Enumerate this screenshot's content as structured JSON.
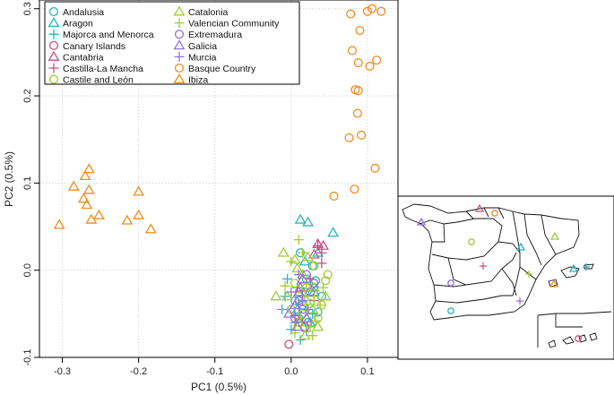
{
  "chart_data": {
    "type": "scatter",
    "title": "",
    "xlabel": "PC1 (0.5%)",
    "ylabel": "PC2 (0.5%)",
    "xlim": [
      -0.33,
      0.14
    ],
    "ylim": [
      -0.1,
      0.31
    ],
    "xticks": [
      -0.3,
      -0.2,
      -0.1,
      0.0,
      0.1
    ],
    "xtick_labels": [
      "-0.3",
      "-0.2",
      "-0.1",
      "0.0",
      "0.1"
    ],
    "yticks": [
      -0.1,
      0.0,
      0.1,
      0.2,
      0.3
    ],
    "ytick_labels": [
      "-0.1",
      "0.0",
      "0.1",
      "0.2",
      "0.3"
    ],
    "grid": true,
    "legend_position": "top-left",
    "series": [
      {
        "name": "Andalusia",
        "color": "#29b3c0",
        "marker": "circle",
        "points": [
          [
            0.012,
            0.02
          ],
          [
            0.03,
            -0.02
          ],
          [
            0.035,
            -0.048
          ],
          [
            0.005,
            -0.035
          ],
          [
            0.02,
            -0.01
          ],
          [
            0.028,
            0.005
          ],
          [
            0.01,
            -0.055
          ],
          [
            0.04,
            -0.03
          ],
          [
            0.022,
            -0.06
          ],
          [
            0.015,
            -0.04
          ],
          [
            0.032,
            -0.012
          ],
          [
            0.018,
            -0.025
          ]
        ]
      },
      {
        "name": "Aragon",
        "color": "#29b3c0",
        "marker": "triangle",
        "points": [
          [
            0.012,
            0.058
          ],
          [
            0.022,
            0.055
          ],
          [
            0.055,
            0.043
          ],
          [
            0.018,
            0.01
          ],
          [
            0.03,
            -0.025
          ],
          [
            0.035,
            0.02
          ],
          [
            0.008,
            -0.045
          ],
          [
            0.025,
            -0.06
          ]
        ]
      },
      {
        "name": "Majorca and Menorca",
        "color": "#29b3c0",
        "marker": "plus",
        "points": [
          [
            0.0,
            -0.068
          ],
          [
            -0.012,
            -0.045
          ],
          [
            0.012,
            -0.08
          ],
          [
            0.005,
            -0.06
          ],
          [
            -0.005,
            -0.01
          ],
          [
            0.015,
            -0.03
          ],
          [
            0.02,
            -0.07
          ],
          [
            0.008,
            -0.02
          ],
          [
            0.028,
            -0.05
          ],
          [
            -0.008,
            -0.03
          ]
        ]
      },
      {
        "name": "Canary Islands",
        "color": "#cc5080",
        "marker": "circle",
        "points": [
          [
            -0.003,
            -0.085
          ],
          [
            0.01,
            -0.06
          ],
          [
            0.018,
            -0.065
          ]
        ]
      },
      {
        "name": "Cantabria",
        "color": "#cc5080",
        "marker": "triangle",
        "points": [
          [
            0.035,
            0.03
          ],
          [
            0.042,
            0.028
          ],
          [
            0.03,
            0.018
          ],
          [
            0.012,
            -0.02
          ]
        ]
      },
      {
        "name": "Castilla-La Mancha",
        "color": "#cc5080",
        "marker": "plus",
        "points": [
          [
            0.035,
            0.028
          ],
          [
            0.04,
            0.02
          ],
          [
            0.04,
            0.008
          ],
          [
            0.025,
            -0.01
          ],
          [
            0.03,
            -0.035
          ]
        ]
      },
      {
        "name": "Castile and León",
        "color": "#a3cc2e",
        "marker": "circle",
        "points": [
          [
            0.005,
            -0.015
          ],
          [
            0.02,
            -0.02
          ],
          [
            0.01,
            -0.03
          ],
          [
            0.035,
            -0.055
          ],
          [
            0.045,
            -0.012
          ],
          [
            0.025,
            -0.038
          ],
          [
            0.015,
            -0.05
          ],
          [
            0.03,
            0.005
          ],
          [
            0.0,
            -0.045
          ],
          [
            0.04,
            -0.04
          ],
          [
            0.048,
            -0.005
          ]
        ]
      },
      {
        "name": "Catalonia",
        "color": "#a3cc2e",
        "marker": "triangle",
        "points": [
          [
            -0.01,
            0.02
          ],
          [
            0.005,
            0.012
          ],
          [
            0.015,
            -0.005
          ],
          [
            0.02,
            -0.035
          ],
          [
            0.028,
            -0.045
          ],
          [
            0.01,
            -0.06
          ],
          [
            -0.005,
            -0.03
          ],
          [
            0.03,
            -0.02
          ],
          [
            0.008,
            0.002
          ],
          [
            0.022,
            0.015
          ],
          [
            -0.02,
            -0.03
          ],
          [
            0.035,
            -0.065
          ],
          [
            0.018,
            -0.075
          ],
          [
            0.045,
            -0.03
          ]
        ]
      },
      {
        "name": "Valencian Community",
        "color": "#a3cc2e",
        "marker": "plus",
        "points": [
          [
            0.01,
            0.035
          ],
          [
            0.0,
            0.01
          ],
          [
            0.02,
            -0.015
          ],
          [
            0.03,
            -0.03
          ],
          [
            0.012,
            -0.055
          ],
          [
            0.025,
            -0.065
          ],
          [
            0.038,
            -0.04
          ],
          [
            -0.008,
            -0.018
          ],
          [
            0.015,
            0.02
          ],
          [
            0.042,
            -0.02
          ],
          [
            0.005,
            -0.072
          ],
          [
            0.032,
            -0.058
          ],
          [
            0.018,
            -0.03
          ],
          [
            0.028,
            -0.075
          ]
        ]
      },
      {
        "name": "Extremadura",
        "color": "#9370db",
        "marker": "circle",
        "points": [
          [
            0.01,
            -0.035
          ],
          [
            0.02,
            -0.005
          ],
          [
            0.025,
            -0.025
          ],
          [
            0.005,
            -0.055
          ],
          [
            0.015,
            -0.045
          ],
          [
            0.03,
            -0.015
          ]
        ]
      },
      {
        "name": "Galicia",
        "color": "#9370db",
        "marker": "triangle",
        "points": [
          [
            0.005,
            -0.04
          ],
          [
            0.01,
            -0.025
          ],
          [
            -0.003,
            -0.05
          ],
          [
            0.015,
            -0.01
          ],
          [
            0.02,
            -0.055
          ],
          [
            0.008,
            -0.065
          ]
        ]
      },
      {
        "name": "Murcia",
        "color": "#9370db",
        "marker": "plus",
        "points": [
          [
            0.005,
            -0.052
          ],
          [
            0.015,
            -0.035
          ],
          [
            0.0,
            -0.025
          ],
          [
            0.022,
            -0.045
          ],
          [
            0.01,
            -0.005
          ]
        ]
      },
      {
        "name": "Basque Country",
        "color": "#f08c1e",
        "marker": "circle",
        "points": [
          [
            0.078,
            0.294
          ],
          [
            0.1,
            0.297
          ],
          [
            0.106,
            0.3
          ],
          [
            0.118,
            0.297
          ],
          [
            0.09,
            0.275
          ],
          [
            0.08,
            0.252
          ],
          [
            0.088,
            0.238
          ],
          [
            0.103,
            0.234
          ],
          [
            0.112,
            0.241
          ],
          [
            0.084,
            0.207
          ],
          [
            0.088,
            0.206
          ],
          [
            0.087,
            0.18
          ],
          [
            0.092,
            0.155
          ],
          [
            0.076,
            0.152
          ],
          [
            0.11,
            0.117
          ],
          [
            0.083,
            0.093
          ],
          [
            0.056,
            0.085
          ]
        ]
      },
      {
        "name": "Ibiza",
        "color": "#f08c1e",
        "marker": "triangle",
        "points": [
          [
            -0.304,
            0.052
          ],
          [
            -0.285,
            0.096
          ],
          [
            -0.27,
            0.108
          ],
          [
            -0.265,
            0.116
          ],
          [
            -0.272,
            0.082
          ],
          [
            -0.265,
            0.092
          ],
          [
            -0.268,
            0.075
          ],
          [
            -0.262,
            0.058
          ],
          [
            -0.252,
            0.063
          ],
          [
            -0.2,
            0.09
          ],
          [
            -0.2,
            0.063
          ],
          [
            -0.215,
            0.057
          ],
          [
            -0.184,
            0.047
          ]
        ]
      }
    ]
  }
}
